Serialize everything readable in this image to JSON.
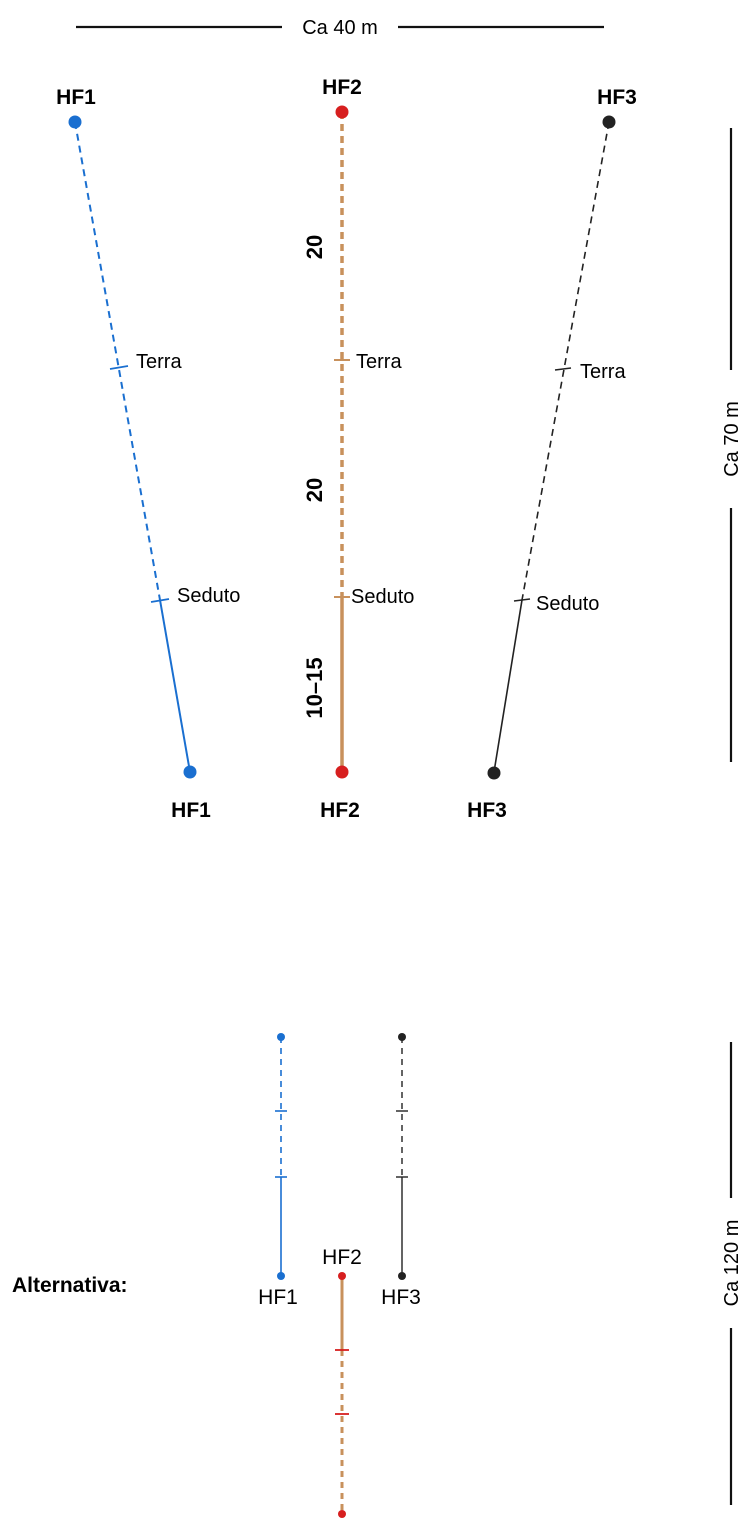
{
  "top": {
    "width_label": "Ca 40 m",
    "height_label": "Ca 70 m",
    "lane_distances": [
      "20",
      "20",
      "10–15"
    ],
    "lanes": [
      {
        "top_label": "HF1",
        "bottom_label": "HF1",
        "mark1": "Terra",
        "mark2": "Seduto"
      },
      {
        "top_label": "HF2",
        "bottom_label": "HF2",
        "mark1": "Terra",
        "mark2": "Seduto"
      },
      {
        "top_label": "HF3",
        "bottom_label": "HF3",
        "mark1": "Terra",
        "mark2": "Seduto"
      }
    ]
  },
  "alternative": {
    "title": "Alternativa:",
    "height_label": "Ca 120 m",
    "labels": [
      "HF1",
      "HF2",
      "HF3"
    ]
  },
  "colors": {
    "hf1": "#1a6fd0",
    "hf2_line": "#c8915c",
    "hf2_point": "#d71f1f",
    "hf3": "#222222"
  }
}
